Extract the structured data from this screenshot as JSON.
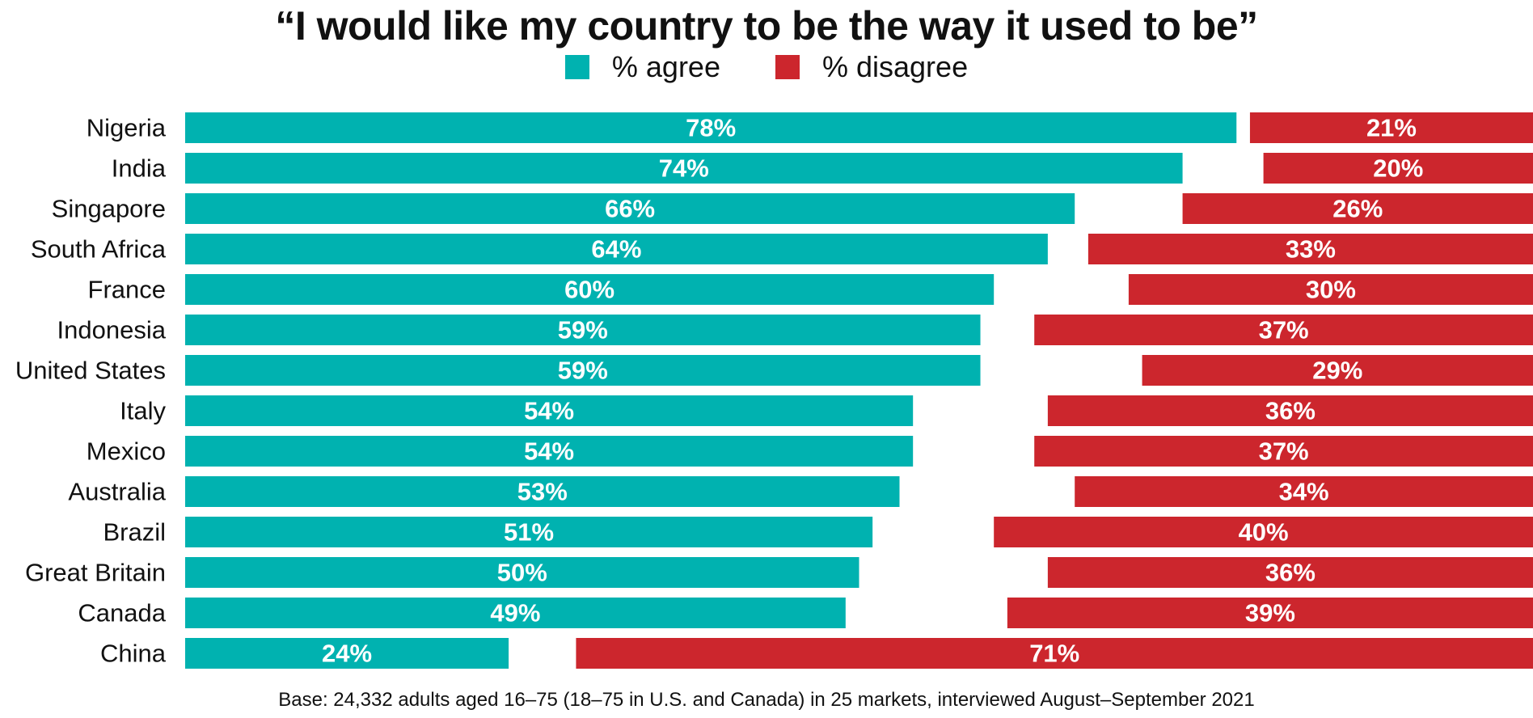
{
  "chart_data": {
    "type": "bar",
    "orientation": "horizontal",
    "title": "“I would like my country to be the way it used to be”",
    "categories": [
      "Nigeria",
      "India",
      "Singapore",
      "South Africa",
      "France",
      "Indonesia",
      "United States",
      "Italy",
      "Mexico",
      "Australia",
      "Brazil",
      "Great Britain",
      "Canada",
      "China"
    ],
    "series": [
      {
        "name": "% agree",
        "color": "#00b2b0",
        "values": [
          78,
          74,
          66,
          64,
          60,
          59,
          59,
          54,
          54,
          53,
          51,
          50,
          49,
          24
        ]
      },
      {
        "name": "% disagree",
        "color": "#cc262d",
        "values": [
          21,
          20,
          26,
          33,
          30,
          37,
          29,
          36,
          37,
          34,
          40,
          36,
          39,
          71
        ]
      }
    ],
    "value_suffix": "%",
    "legend_position": "top-center",
    "grid": false,
    "xlim": [
      0,
      100
    ]
  },
  "footnote": "Base: 24,332 adults aged 16–75 (18–75 in U.S. and Canada) in 25 markets, interviewed August–September 2021"
}
